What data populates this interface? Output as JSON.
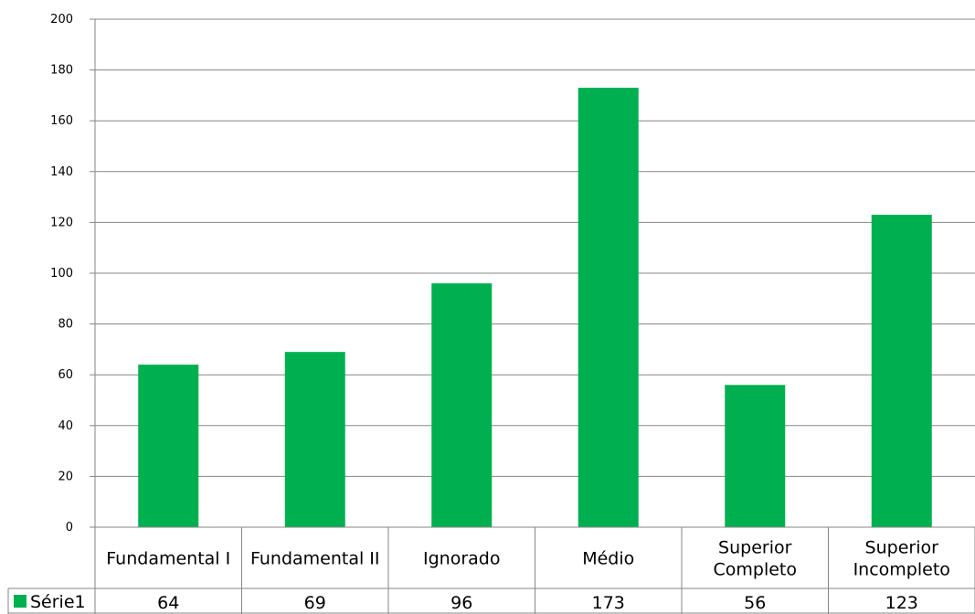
{
  "chart_data": {
    "type": "bar",
    "title": "",
    "xlabel": "",
    "ylabel": "",
    "ylim": [
      0,
      200
    ],
    "yticks": [
      "0",
      "20",
      "40",
      "60",
      "80",
      "100",
      "120",
      "140",
      "160",
      "180",
      "200"
    ],
    "categories": [
      "Fundamental I",
      "Fundamental II",
      "Ignorado",
      "Médio",
      "Superior Completo",
      "Superior Incompleto"
    ],
    "category_lines": [
      [
        "Fundamental I"
      ],
      [
        "Fundamental II"
      ],
      [
        "Ignorado"
      ],
      [
        "Médio"
      ],
      [
        "Superior",
        "Completo"
      ],
      [
        "Superior",
        "Incompleto"
      ]
    ],
    "series": [
      {
        "name": "Série1",
        "values": [
          64,
          69,
          96,
          173,
          56,
          123
        ],
        "color": "#00b050"
      }
    ],
    "value_labels": [
      "64",
      "69",
      "96",
      "173",
      "56",
      "123"
    ],
    "grid": true,
    "legend": "data-table-left"
  },
  "colors": {
    "bar": "#00b050",
    "grid": "#868686",
    "axis": "#868686",
    "text": "#000000"
  }
}
